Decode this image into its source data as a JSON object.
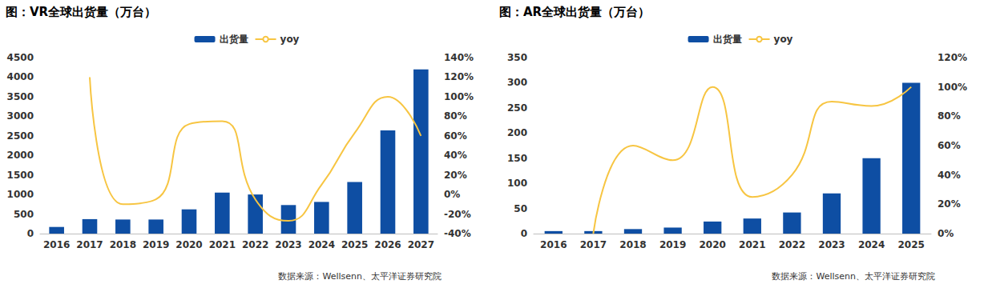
{
  "chart_data": [
    {
      "type": "bar",
      "title": "图：VR全球出货量（万台）",
      "annotations": [
        "数据来源：Wellsenn、太平洋证券研究院"
      ],
      "categories": [
        "2016",
        "2017",
        "2018",
        "2019",
        "2020",
        "2021",
        "2022",
        "2023",
        "2024",
        "2025",
        "2026",
        "2027"
      ],
      "series": [
        {
          "name": "出货量",
          "type": "bar",
          "color": "#0e4ea3",
          "values": [
            170,
            370,
            360,
            360,
            620,
            1050,
            1000,
            730,
            810,
            1320,
            2640,
            4200
          ]
        },
        {
          "name": "yoy",
          "type": "line",
          "axis": "y2",
          "color": "#f7c542",
          "marker": "none",
          "line_style": "solid",
          "values": [
            null,
            120,
            -10,
            -5,
            72,
            75,
            -5,
            -27,
            10,
            63,
            100,
            60
          ]
        }
      ],
      "ylim": [
        0,
        4500
      ],
      "yticks": [
        0,
        500,
        1000,
        1500,
        2000,
        2500,
        3000,
        3500,
        4000,
        4500
      ],
      "y2lim": [
        -40,
        140
      ],
      "y2ticks": [
        {
          "value": -40,
          "label": "-40%"
        },
        {
          "value": -20,
          "label": "-20%"
        },
        {
          "value": 0,
          "label": "0%"
        },
        {
          "value": 20,
          "label": "20%"
        },
        {
          "value": 40,
          "label": "40%"
        },
        {
          "value": 60,
          "label": "60%"
        },
        {
          "value": 80,
          "label": "80%"
        },
        {
          "value": 100,
          "label": "100%"
        },
        {
          "value": 120,
          "label": "120%"
        },
        {
          "value": 140,
          "label": "140%"
        }
      ],
      "grid": false,
      "legend": "top"
    },
    {
      "type": "bar",
      "title": "图：AR全球出货量（万台）",
      "annotations": [
        "数据来源：Wellsenn、太平洋证券研究院"
      ],
      "categories": [
        "2016",
        "2017",
        "2018",
        "2019",
        "2020",
        "2021",
        "2022",
        "2023",
        "2024",
        "2025"
      ],
      "series": [
        {
          "name": "出货量",
          "type": "bar",
          "color": "#0e4ea3",
          "values": [
            5,
            5,
            9,
            12,
            24,
            30,
            42,
            80,
            150,
            300
          ]
        },
        {
          "name": "yoy",
          "type": "line",
          "axis": "y2",
          "color": "#f7c542",
          "marker": "none",
          "line_style": "solid",
          "values": [
            null,
            0,
            60,
            50,
            100,
            25,
            40,
            90,
            87,
            100
          ]
        }
      ],
      "ylim": [
        0,
        350
      ],
      "yticks": [
        0,
        50,
        100,
        150,
        200,
        250,
        300,
        350
      ],
      "y2lim": [
        0,
        120
      ],
      "y2ticks": [
        {
          "value": 0,
          "label": "0%"
        },
        {
          "value": 20,
          "label": "20%"
        },
        {
          "value": 40,
          "label": "40%"
        },
        {
          "value": 60,
          "label": "60%"
        },
        {
          "value": 80,
          "label": "80%"
        },
        {
          "value": 100,
          "label": "100%"
        },
        {
          "value": 120,
          "label": "120%"
        }
      ],
      "grid": false,
      "legend": "top"
    }
  ]
}
